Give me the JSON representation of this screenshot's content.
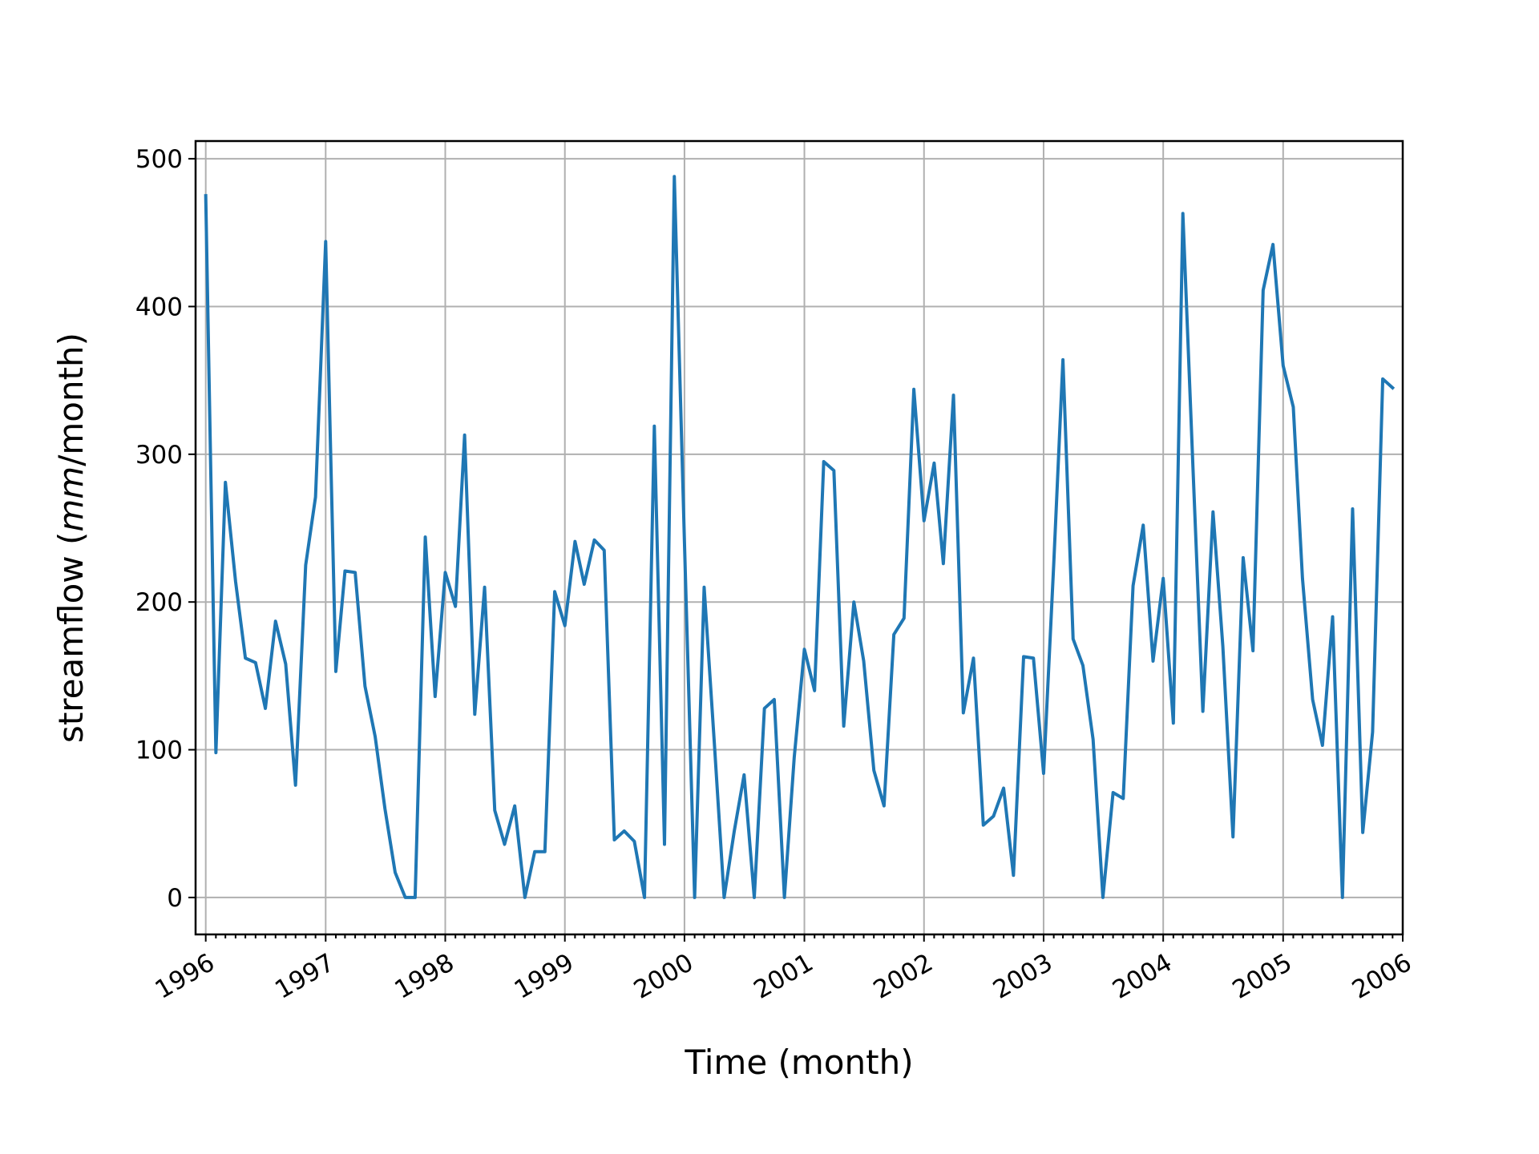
{
  "chart_data": {
    "type": "line",
    "title": "",
    "xlabel": "Time (month)",
    "ylabel_prefix": "streamflow (",
    "ylabel_unit": "mm",
    "ylabel_suffix": "/month)",
    "x_start": "1996-01",
    "x_end": "2005-12",
    "xlim": [
      "1995-12-01",
      "2006-01-01"
    ],
    "ylim": [
      -25,
      512
    ],
    "yticks": [
      0,
      100,
      200,
      300,
      400,
      500
    ],
    "xtick_labels": [
      "1996",
      "1997",
      "1998",
      "1999",
      "2000",
      "2001",
      "2002",
      "2003",
      "2004",
      "2005",
      "2006"
    ],
    "grid": true,
    "line_color": "#1f77b4",
    "series": [
      {
        "values": [
          475,
          98,
          281,
          214,
          162,
          159,
          128,
          187,
          158,
          76,
          225,
          271,
          444,
          153,
          221,
          220,
          143,
          109,
          60,
          17,
          0,
          0,
          244,
          136,
          220,
          197,
          313,
          124,
          210,
          59,
          36,
          62,
          0,
          31,
          31,
          207,
          184,
          241,
          212,
          242,
          235,
          39,
          45,
          38,
          0,
          319,
          36,
          488,
          240,
          0,
          210,
          105,
          0,
          45,
          83,
          0,
          128,
          134,
          0,
          95,
          168,
          140,
          295,
          289,
          116,
          200,
          160,
          86,
          62,
          178,
          189,
          344,
          255,
          294,
          226,
          340,
          125,
          162,
          49,
          55,
          74,
          15,
          163,
          162,
          84,
          226,
          364,
          175,
          157,
          107,
          0,
          71,
          67,
          211,
          252,
          160,
          216,
          118,
          463,
          290,
          126,
          261,
          170,
          41,
          230,
          167,
          411,
          442,
          360,
          332,
          216,
          134,
          103,
          190,
          0,
          263,
          44,
          112,
          351,
          345
        ]
      }
    ]
  }
}
